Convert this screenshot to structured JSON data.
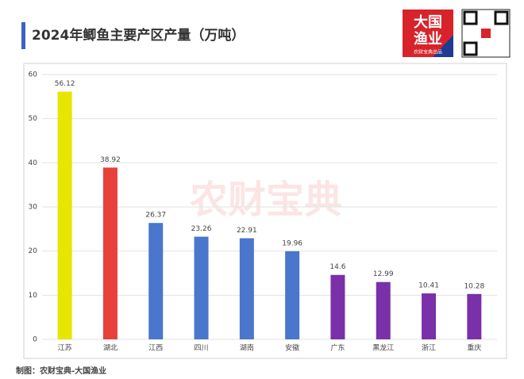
{
  "chart_data": {
    "type": "bar",
    "title": "2024年鲫鱼主要产区产量（万吨）",
    "footer": "制图：农财宝典-大国渔业",
    "watermark": "农财宝典",
    "logo": {
      "line1": "大国",
      "line2": "渔业",
      "caption": "农财宝典出品"
    },
    "categories": [
      "江苏",
      "湖北",
      "江西",
      "四川",
      "湖南",
      "安徽",
      "广东",
      "黑龙江",
      "浙江",
      "重庆"
    ],
    "values": [
      56.12,
      38.92,
      26.37,
      23.26,
      22.91,
      19.96,
      14.6,
      12.99,
      10.41,
      10.28
    ],
    "colors": [
      "#e6e600",
      "#e8403a",
      "#4a76cc",
      "#4a76cc",
      "#4a76cc",
      "#4a76cc",
      "#7a30a8",
      "#7a30a8",
      "#7a30a8",
      "#7a30a8"
    ],
    "ylim": [
      0,
      60
    ],
    "yticks": [
      0,
      10,
      20,
      30,
      40,
      50,
      60
    ],
    "grid": true
  }
}
